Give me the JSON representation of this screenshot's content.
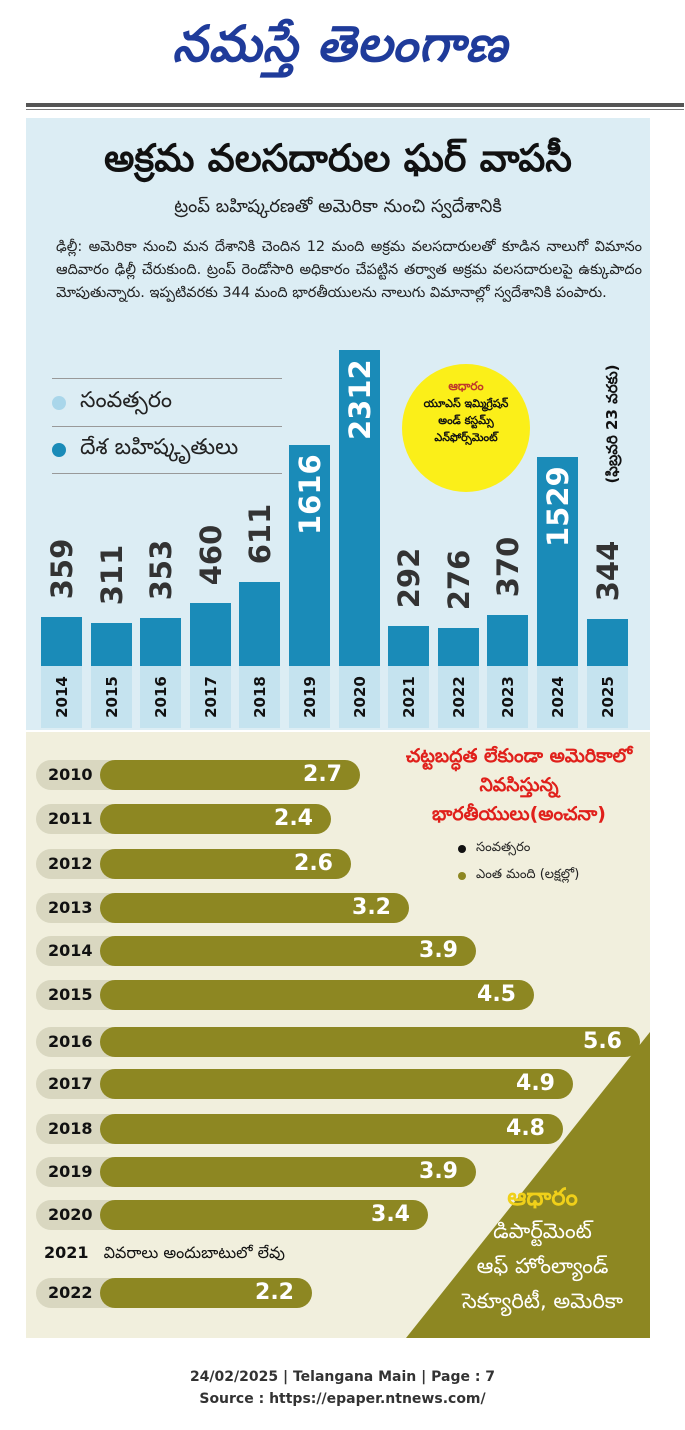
{
  "masthead": {
    "name": "నమస్తే తెలంగాణ"
  },
  "article": {
    "headline": "అక్రమ వలసదారుల ఘర్ వాపసీ",
    "subhead": "ట్రంప్ బహిష్కరణతో అమెరికా నుంచి స్వదేశానికి",
    "body": "ఢిల్లీ: అమెరికా నుంచి మన దేశానికి చెందిన 12 మంది అక్రమ వలసదారులతో కూడిన నాలుగో విమానం ఆదివారం ఢిల్లీ చేరుకుంది. ట్రంప్ రెండోసారి అధికారం చేపట్టిన తర్వాత అక్రమ వలసదారులపై ఉక్కుపాదం మోపుతున్నారు. ఇప్పటివరకు 344 మంది భారతీయులను నాలుగు విమానాల్లో స్వదేశానికి పంపారు."
  },
  "colors": {
    "bar_blue": "#1a8bb8",
    "year_box": "#c5e3ef",
    "legend_dot_light": "#a9d6ea",
    "olive": "#8d8722",
    "red_title": "#e0201b",
    "badge_yellow": "#fbef19",
    "masthead_blue": "#1f3b9a"
  },
  "chart_data": [
    {
      "type": "bar",
      "legend": [
        "సంవత్సరం",
        "దేశ బహిష్కృతులు"
      ],
      "categories": [
        "2014",
        "2015",
        "2016",
        "2017",
        "2018",
        "2019",
        "2020",
        "2021",
        "2022",
        "2023",
        "2024",
        "2025"
      ],
      "values": [
        359,
        311,
        353,
        460,
        611,
        1616,
        2312,
        292,
        276,
        370,
        1529,
        344
      ],
      "source_label": "ఆధారం",
      "source": "యూఎస్ ఇమ్మిగ్రేషన్ అండ్ కస్టమ్స్ ఎన్‌ఫోర్స్‌మెంట్",
      "note_2025": "(ఫిబ్రవరి 23 వరకు)"
    },
    {
      "type": "bar",
      "orientation": "horizontal",
      "title": "చట్టబద్ధత లేకుండా అమెరికాలో నివసిస్తున్న భారతీయులు(అంచనా)",
      "legend": [
        "సంవత్సరం",
        "ఎంత మంది (లక్షల్లో)"
      ],
      "categories": [
        "2010",
        "2011",
        "2012",
        "2013",
        "2014",
        "2015",
        "2016",
        "2017",
        "2018",
        "2019",
        "2020",
        "2021",
        "2022"
      ],
      "values": [
        2.7,
        2.4,
        2.6,
        3.2,
        3.9,
        4.5,
        5.6,
        4.9,
        4.8,
        3.9,
        3.4,
        null,
        2.2
      ],
      "missing_note": "వివరాలు అందుబాటులో లేవు",
      "source_label": "ఆధారం",
      "source": [
        "డిపార్ట్‌మెంట్",
        "ఆఫ్ హోంల్యాండ్",
        "సెక్యూరిటీ, అమెరికా"
      ]
    }
  ],
  "footer": {
    "line1": "24/02/2025 | Telangana Main | Page : 7",
    "line2": "Source : https://epaper.ntnews.com/"
  }
}
